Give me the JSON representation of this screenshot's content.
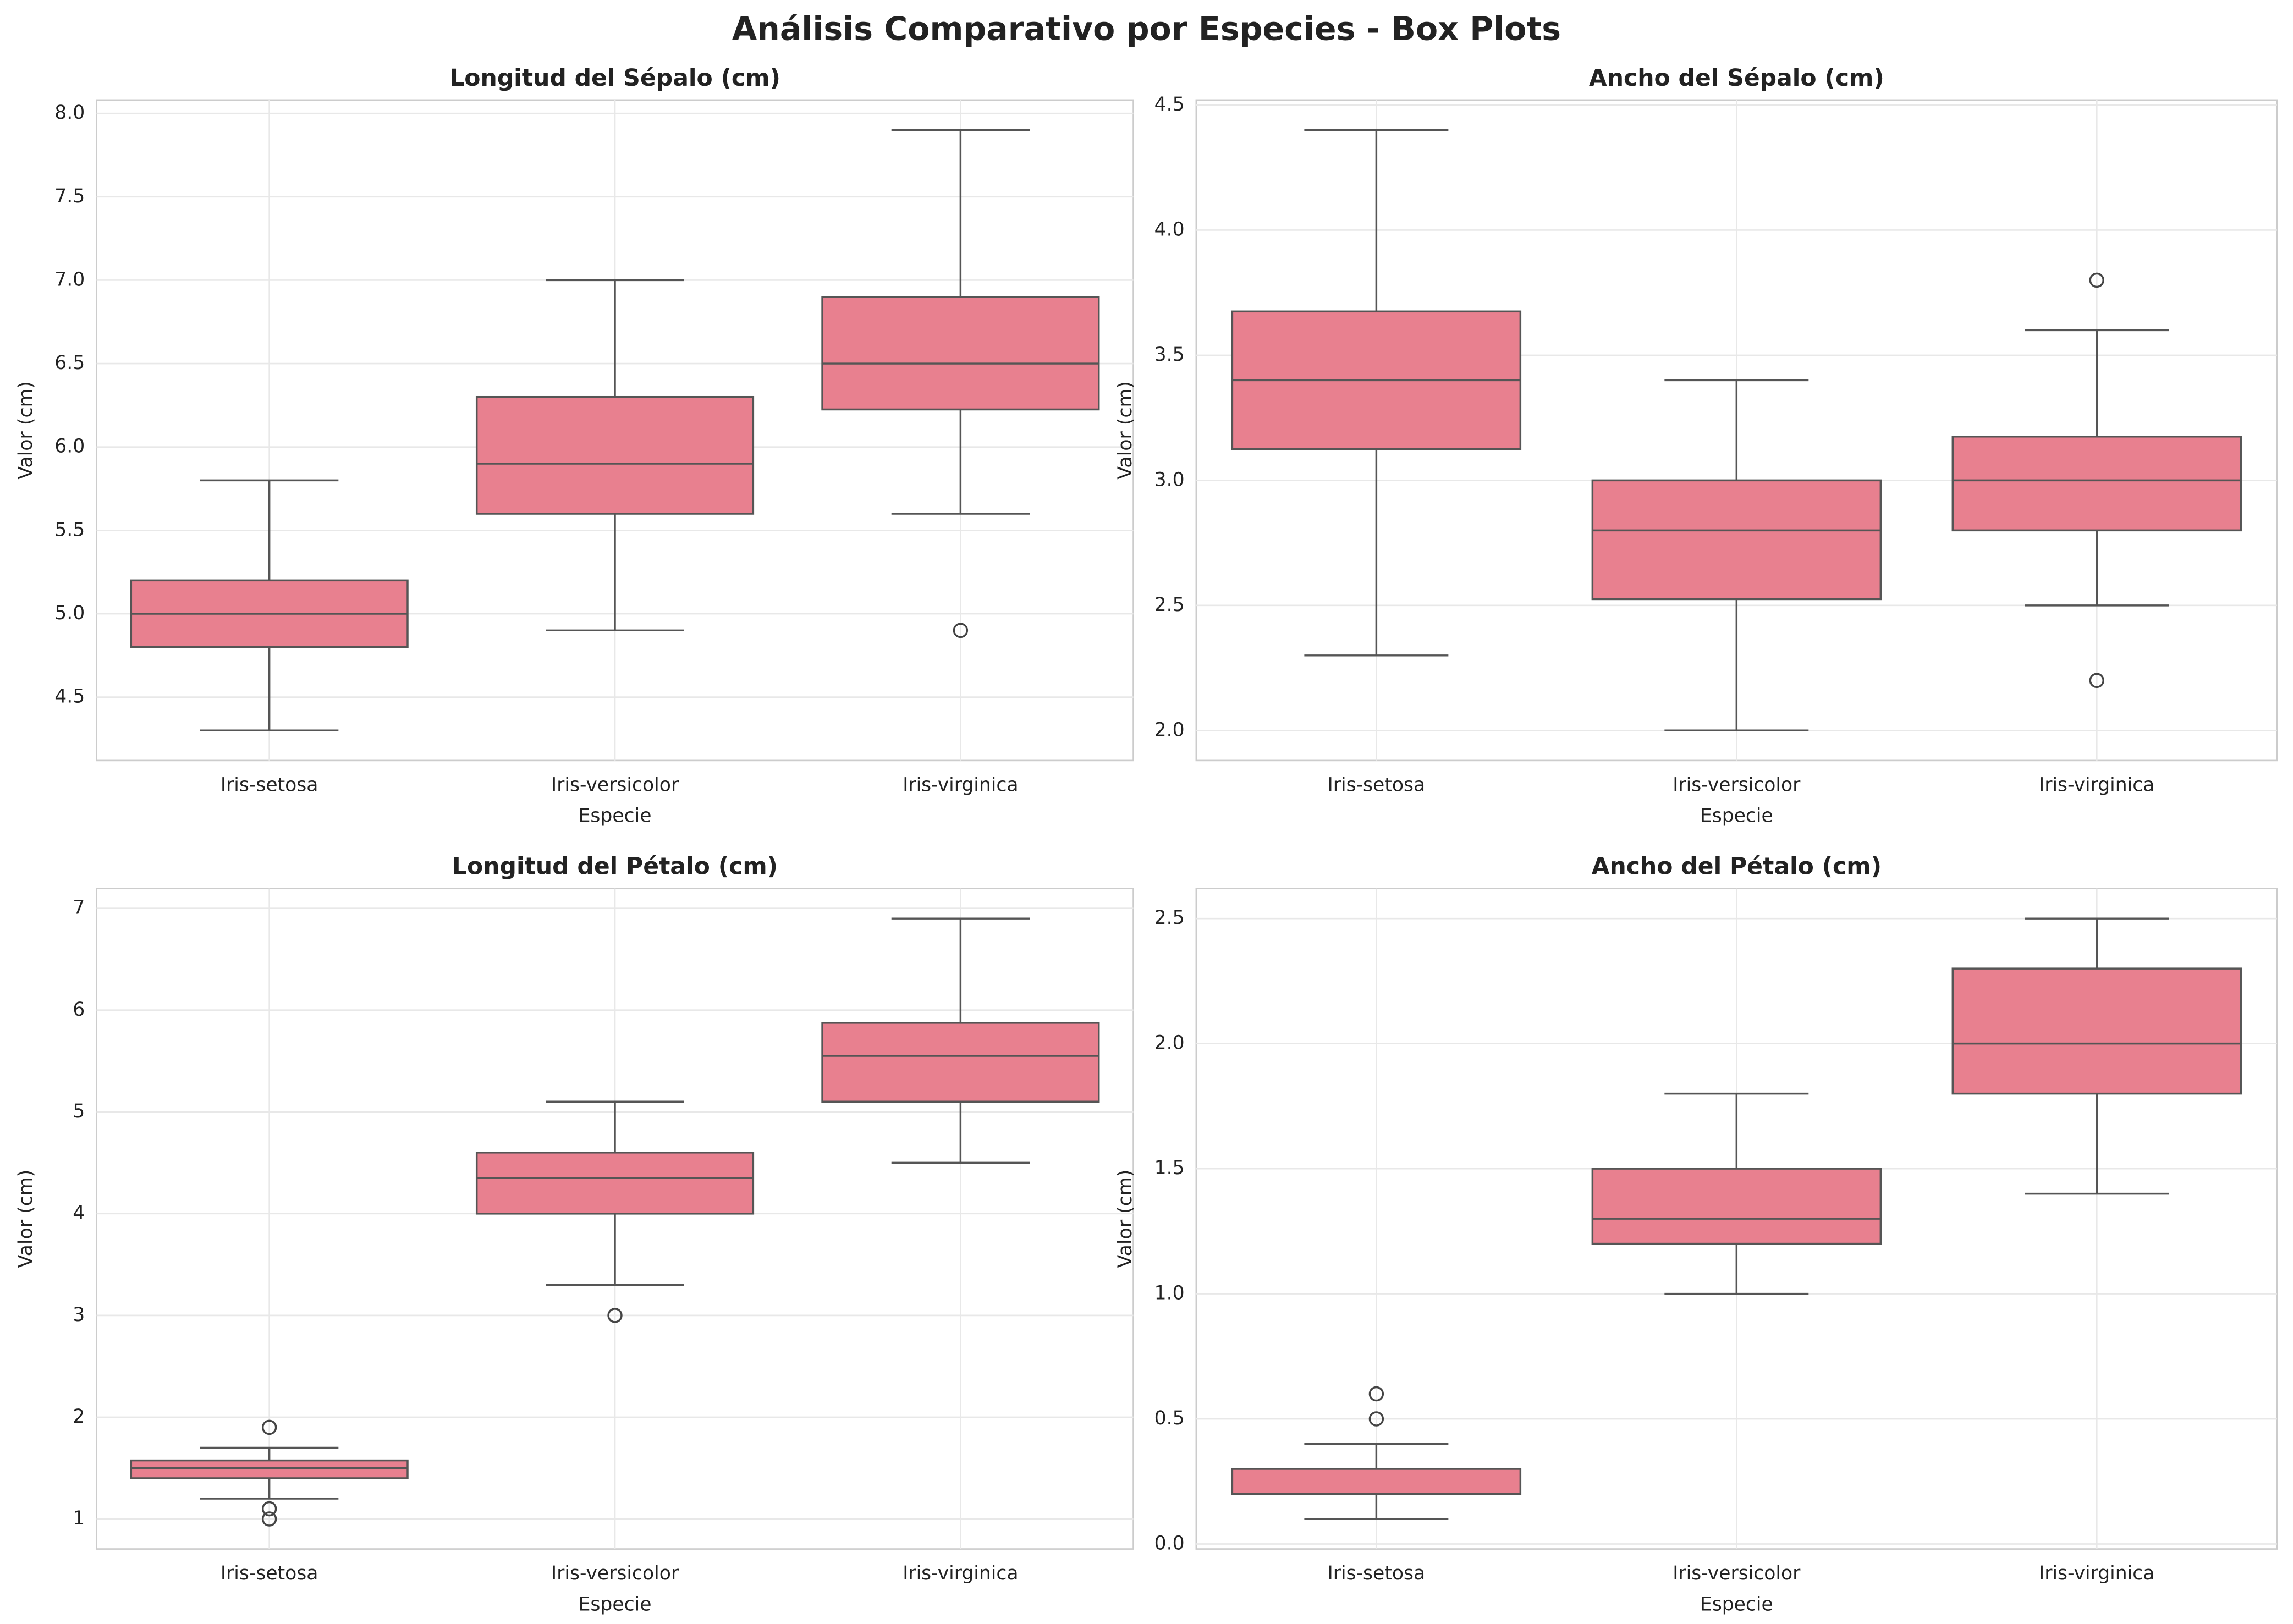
{
  "title": "Análisis Comparativo por Especies - Box Plots",
  "chart_data": [
    {
      "type": "box",
      "title": "Longitud del Sépalo (cm)",
      "x_label": "Especie",
      "y_label": "Valor (cm)",
      "color": "#e8808f",
      "grid": true,
      "categories": [
        "Iris-setosa",
        "Iris-versicolor",
        "Iris-virginica"
      ],
      "boxes": [
        {
          "whisker_low": 4.3,
          "q1": 4.8,
          "median": 5.0,
          "q3": 5.2,
          "whisker_high": 5.8,
          "outliers": []
        },
        {
          "whisker_low": 4.9,
          "q1": 5.6,
          "median": 5.9,
          "q3": 6.3,
          "whisker_high": 7.0,
          "outliers": []
        },
        {
          "whisker_low": 5.6,
          "q1": 6.225,
          "median": 6.5,
          "q3": 6.9,
          "whisker_high": 7.9,
          "outliers": [
            4.9
          ]
        }
      ],
      "ylim": [
        4.12,
        8.08
      ],
      "yticks": [
        4.5,
        {
          "value": 5,
          "label": "5.0"
        },
        5.5,
        {
          "value": 6,
          "label": "6.0"
        },
        6.5,
        {
          "value": 7,
          "label": "7.0"
        },
        7.5,
        {
          "value": 8,
          "label": "8.0"
        }
      ]
    },
    {
      "type": "box",
      "title": "Ancho del Sépalo (cm)",
      "x_label": "Especie",
      "y_label": "Valor (cm)",
      "color": "#e8808f",
      "grid": true,
      "categories": [
        "Iris-setosa",
        "Iris-versicolor",
        "Iris-virginica"
      ],
      "boxes": [
        {
          "whisker_low": 2.3,
          "q1": 3.125,
          "median": 3.4,
          "q3": 3.675,
          "whisker_high": 4.4,
          "outliers": []
        },
        {
          "whisker_low": 2.0,
          "q1": 2.525,
          "median": 2.8,
          "q3": 3.0,
          "whisker_high": 3.4,
          "outliers": []
        },
        {
          "whisker_low": 2.5,
          "q1": 2.8,
          "median": 3.0,
          "q3": 3.175,
          "whisker_high": 3.6,
          "outliers": [
            3.8,
            2.2
          ]
        }
      ],
      "ylim": [
        1.88,
        4.52
      ],
      "yticks": [
        {
          "value": 2,
          "label": "2.0"
        },
        2.5,
        {
          "value": 3,
          "label": "3.0"
        },
        3.5,
        {
          "value": 4,
          "label": "4.0"
        },
        4.5
      ]
    },
    {
      "type": "box",
      "title": "Longitud del Pétalo (cm)",
      "x_label": "Especie",
      "y_label": "Valor (cm)",
      "color": "#e8808f",
      "grid": true,
      "categories": [
        "Iris-setosa",
        "Iris-versicolor",
        "Iris-virginica"
      ],
      "boxes": [
        {
          "whisker_low": 1.2,
          "q1": 1.4,
          "median": 1.5,
          "q3": 1.575,
          "whisker_high": 1.7,
          "outliers": [
            1.9,
            1.1,
            1.0
          ]
        },
        {
          "whisker_low": 3.3,
          "q1": 4.0,
          "median": 4.35,
          "q3": 4.6,
          "whisker_high": 5.1,
          "outliers": [
            3.0
          ]
        },
        {
          "whisker_low": 4.5,
          "q1": 5.1,
          "median": 5.55,
          "q3": 5.875,
          "whisker_high": 6.9,
          "outliers": []
        }
      ],
      "ylim": [
        0.705,
        7.195
      ],
      "yticks": [
        1,
        2,
        3,
        4,
        5,
        6,
        7
      ]
    },
    {
      "type": "box",
      "title": "Ancho del Pétalo (cm)",
      "x_label": "Especie",
      "y_label": "Valor (cm)",
      "color": "#e8808f",
      "grid": true,
      "categories": [
        "Iris-setosa",
        "Iris-versicolor",
        "Iris-virginica"
      ],
      "boxes": [
        {
          "whisker_low": 0.1,
          "q1": 0.2,
          "median": 0.2,
          "q3": 0.3,
          "whisker_high": 0.4,
          "outliers": [
            0.6,
            0.5
          ]
        },
        {
          "whisker_low": 1.0,
          "q1": 1.2,
          "median": 1.3,
          "q3": 1.5,
          "whisker_high": 1.8,
          "outliers": []
        },
        {
          "whisker_low": 1.4,
          "q1": 1.8,
          "median": 2.0,
          "q3": 2.3,
          "whisker_high": 2.5,
          "outliers": []
        }
      ],
      "ylim": [
        -0.02,
        2.62
      ],
      "yticks": [
        {
          "value": 0,
          "label": "0.0"
        },
        0.5,
        {
          "value": 1,
          "label": "1.0"
        },
        1.5,
        {
          "value": 2,
          "label": "2.0"
        },
        2.5
      ]
    }
  ]
}
